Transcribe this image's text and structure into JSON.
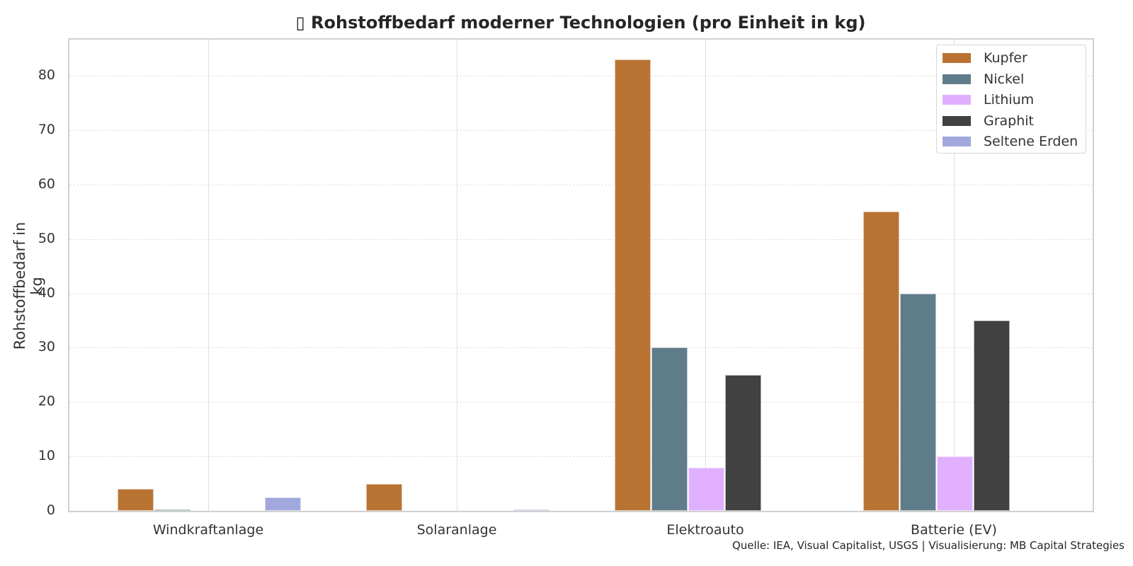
{
  "chart_data": {
    "type": "bar",
    "title": "▯ Rohstoffbedarf moderner Technologien (pro Einheit in kg)",
    "xlabel": "",
    "ylabel": "Rohstoffbedarf in kg",
    "ylim": [
      0,
      87
    ],
    "yticks": [
      0,
      10,
      20,
      30,
      40,
      50,
      60,
      70,
      80
    ],
    "grid": {
      "y": "dashed",
      "x": "solid at categories"
    },
    "legend_position": "upper right",
    "categories": [
      "Windkraftanlage",
      "Solaranlage",
      "Elektroauto",
      "Batterie (EV)"
    ],
    "series": [
      {
        "name": "Kupfer",
        "color": "#b87333",
        "values": [
          4,
          5,
          83,
          55
        ]
      },
      {
        "name": "Nickel",
        "color": "#5f7c8a",
        "values": [
          0.2,
          0,
          30,
          40
        ]
      },
      {
        "name": "Lithium",
        "color": "#e0b0ff",
        "values": [
          0,
          0,
          8,
          10
        ]
      },
      {
        "name": "Graphit",
        "color": "#414141",
        "values": [
          0,
          0,
          25,
          35
        ]
      },
      {
        "name": "Seltene Erden",
        "color": "#a0a8dc",
        "values": [
          2.5,
          0.3,
          0,
          0
        ]
      }
    ],
    "source": "Quelle: IEA, Visual Capitalist, USGS | Visualisierung: MB Capital Strategies"
  }
}
